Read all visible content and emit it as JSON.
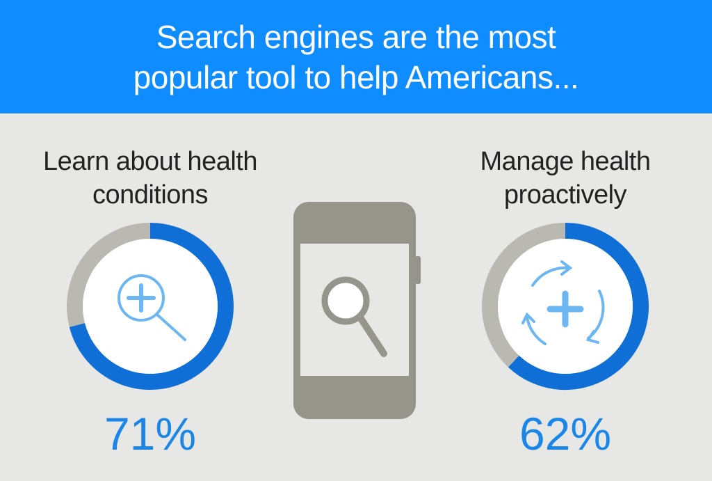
{
  "header": {
    "title": "Search engines are the most popular tool to help Americans..."
  },
  "chart_data": [
    {
      "type": "donut",
      "title": "Learn about health conditions",
      "categories": [
        null,
        null
      ],
      "values": [
        71,
        29
      ],
      "value_labels": [
        "71%",
        null
      ],
      "colors": [
        "#0f6fd6",
        "#b9b8b1"
      ]
    },
    {
      "type": "donut",
      "title": "Manage health proactively",
      "categories": [
        null,
        null
      ],
      "values": [
        62,
        38
      ],
      "value_labels": [
        "62%",
        null
      ],
      "colors": [
        "#0f6fd6",
        "#b9b8b1"
      ]
    }
  ]
}
